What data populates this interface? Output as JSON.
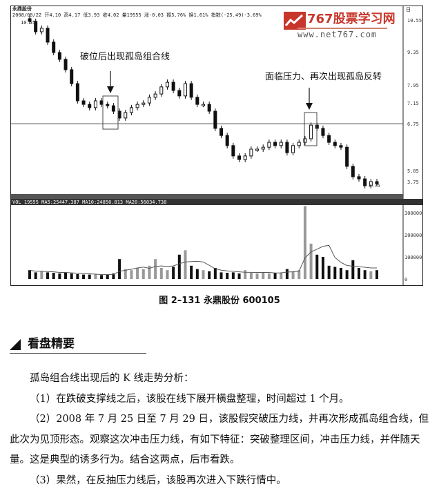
{
  "chart_header": {
    "stock_name": "永鼎股份",
    "info_line": "2008/08/22 开4.10 高4.17 低3.93 收4.02 量19555 涨-0.03 振5.76% 换1.61% 指数(-25.49)-3.69%",
    "period_label": "日",
    "high_label": "10.55"
  },
  "logo": {
    "brand": "767股票学习网",
    "url": "www.net767.com",
    "color": "#c8362b"
  },
  "annotations": {
    "left": "破位后出现孤岛组合线",
    "right": "面临压力、再次出现孤岛反转"
  },
  "volume_header": "VOL 19555 MA5:25447.387 MA10:24850.813 MA20:56034.738",
  "chart_data": {
    "type": "candlestick",
    "price_axis_ticks": [
      "10.55",
      "9.35",
      "7.95",
      "7.15",
      "6.75",
      "5.05",
      "3.75"
    ],
    "support_line": 6.75,
    "low_label": "3.75",
    "closes": [
      10.5,
      10.12,
      10.25,
      9.74,
      9.36,
      9.11,
      8.73,
      8.22,
      7.59,
      7.46,
      7.34,
      7.59,
      7.46,
      7.41,
      7.21,
      6.96,
      7.16,
      7.34,
      7.46,
      7.51,
      7.72,
      7.84,
      8.1,
      8.27,
      7.97,
      7.77,
      8.22,
      7.72,
      7.46,
      7.46,
      7.21,
      6.58,
      6.32,
      5.95,
      5.57,
      5.44,
      5.57,
      5.82,
      5.82,
      5.89,
      6.07,
      5.95,
      6.07,
      5.69,
      5.95,
      6.07,
      6.2,
      6.7,
      6.58,
      6.32,
      6.07,
      5.95,
      5.89,
      5.19,
      4.81,
      4.73,
      4.48,
      4.63,
      4.55
    ],
    "volume_axis_ticks": [
      "300000",
      "200000",
      "100000",
      "0"
    ],
    "volumes": [
      40000,
      30000,
      35000,
      30000,
      28000,
      25000,
      30000,
      25000,
      22000,
      20000,
      20000,
      22000,
      18000,
      20000,
      25000,
      90000,
      45000,
      40000,
      50000,
      45000,
      60000,
      90000,
      50000,
      40000,
      55000,
      110000,
      130000,
      60000,
      45000,
      40000,
      35000,
      50000,
      30000,
      28000,
      30000,
      25000,
      40000,
      28000,
      25000,
      30000,
      25000,
      28000,
      30000,
      45000,
      35000,
      40000,
      330000,
      160000,
      110000,
      100000,
      60000,
      55000,
      50000,
      40000,
      85000,
      50000,
      40000,
      35000,
      40000
    ],
    "highlight_boxes": [
      "2008-06 island",
      "2008-07-25 to 2008-07-29 island"
    ]
  },
  "caption": "图 2–131    永鼎股份    600105",
  "section_title": "看盘精要",
  "paragraphs": [
    "孤岛组合线出现后的 K 线走势分析：",
    "（1）在跌破支撑线之后，该股在线下展开横盘整理，时间超过 1 个月。",
    "（2）2008 年 7 月 25 日至 7 月 29 日，该股假突破压力线，并再次形成孤岛组合线，但此次为见顶形态。观察这次冲击压力线，有如下特征：突破整理区间，冲击压力线，并伴随天量。这是典型的诱多行为。结合这两点，后市看跌。",
    "（3）果然，在反抽压力线后，该股再次进入下跌行情中。"
  ]
}
